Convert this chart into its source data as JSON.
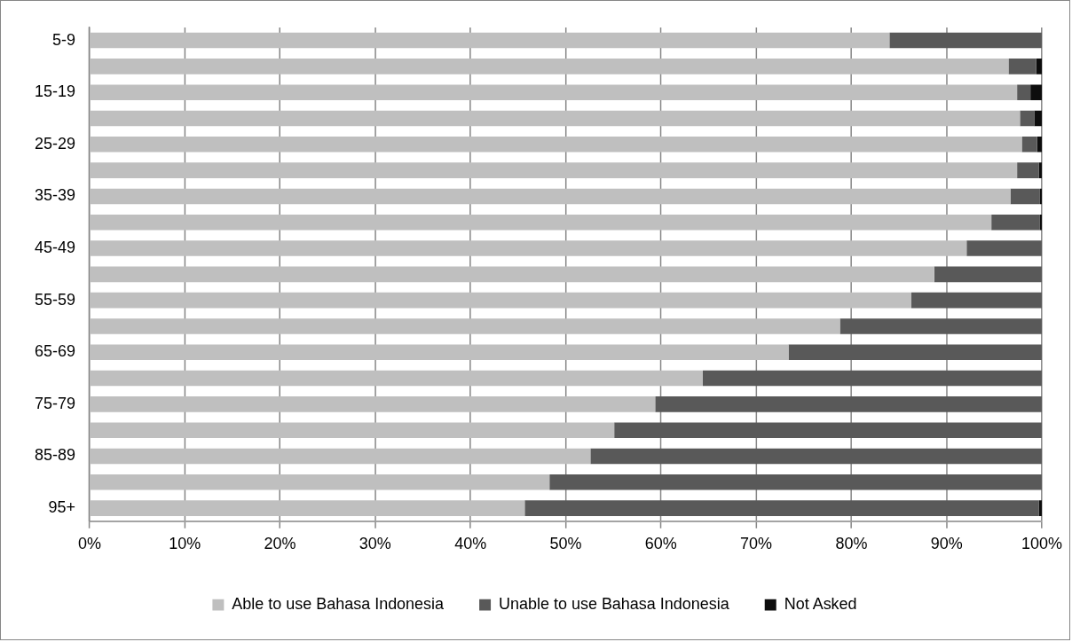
{
  "chart_data": {
    "type": "bar",
    "orientation": "horizontal",
    "stacked": true,
    "categories": [
      "5-9",
      null,
      "15-19",
      null,
      "25-29",
      null,
      "35-39",
      null,
      "45-49",
      null,
      "55-59",
      null,
      "65-69",
      null,
      "75-79",
      null,
      "85-89",
      null,
      "95+"
    ],
    "series": [
      {
        "name": "Able to use Bahasa Indonesia",
        "color": "#bfbfbf",
        "values": [
          84.0,
          96.5,
          97.4,
          97.7,
          97.9,
          97.4,
          96.7,
          94.7,
          92.1,
          88.7,
          86.3,
          78.8,
          73.4,
          64.4,
          59.4,
          55.1,
          52.6,
          48.3,
          45.7
        ]
      },
      {
        "name": "Unable to use Bahasa Indonesia",
        "color": "#595959",
        "values": [
          16.0,
          2.9,
          1.4,
          1.5,
          1.6,
          2.3,
          3.1,
          5.1,
          7.9,
          11.3,
          13.7,
          21.2,
          26.6,
          35.6,
          40.6,
          44.9,
          47.4,
          51.7,
          54.0
        ]
      },
      {
        "name": "Not Asked",
        "color": "#0d0d0d",
        "values": [
          0,
          0.6,
          1.2,
          0.8,
          0.5,
          0.3,
          0.2,
          0.2,
          0,
          0,
          0,
          0,
          0,
          0,
          0,
          0,
          0,
          0,
          0.3
        ]
      }
    ],
    "xlim": [
      0,
      100
    ],
    "xticks": [
      {
        "value": 0,
        "label": "0%"
      },
      {
        "value": 10,
        "label": "10%"
      },
      {
        "value": 20,
        "label": "20%"
      },
      {
        "value": 30,
        "label": "30%"
      },
      {
        "value": 40,
        "label": "40%"
      },
      {
        "value": 50,
        "label": "50%"
      },
      {
        "value": 60,
        "label": "60%"
      },
      {
        "value": 70,
        "label": "70%"
      },
      {
        "value": 80,
        "label": "80%"
      },
      {
        "value": 90,
        "label": "90%"
      },
      {
        "value": 100,
        "label": "100%"
      }
    ],
    "grid": "x",
    "legend": "bottom"
  }
}
